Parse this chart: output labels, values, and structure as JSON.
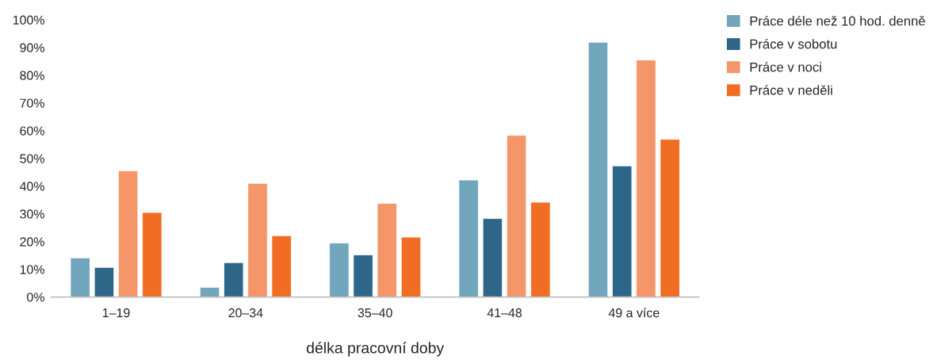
{
  "chart_data": {
    "type": "bar",
    "xlabel": "délka pracovní doby",
    "categories": [
      "1–19",
      "20–34",
      "35–40",
      "41–48",
      "49 a více"
    ],
    "series": [
      {
        "name": "Práce déle než 10 hod. denně",
        "color": "#71a6bc",
        "values": [
          14.1,
          3.5,
          19.5,
          42.2,
          91.9
        ]
      },
      {
        "name": "Práce v sobotu",
        "color": "#2e6689",
        "values": [
          10.7,
          12.4,
          15.2,
          28.3,
          47.3
        ]
      },
      {
        "name": "Práce v noci",
        "color": "#f5956a",
        "values": [
          45.5,
          41.0,
          33.8,
          58.3,
          85.5
        ]
      },
      {
        "name": "Práce v neděli",
        "color": "#f26d24",
        "values": [
          30.5,
          22.1,
          21.6,
          34.2,
          56.9
        ]
      }
    ],
    "ylim": [
      0,
      100
    ],
    "yticks": [
      {
        "value": 0,
        "label": "0%"
      },
      {
        "value": 10,
        "label": "10%"
      },
      {
        "value": 20,
        "label": "20%"
      },
      {
        "value": 30,
        "label": "30%"
      },
      {
        "value": 40,
        "label": "40%"
      },
      {
        "value": 50,
        "label": "50%"
      },
      {
        "value": 60,
        "label": "60%"
      },
      {
        "value": 70,
        "label": "70%"
      },
      {
        "value": 80,
        "label": "80%"
      },
      {
        "value": 90,
        "label": "90%"
      },
      {
        "value": 100,
        "label": "100%"
      }
    ],
    "grid": false,
    "legend": "right"
  }
}
